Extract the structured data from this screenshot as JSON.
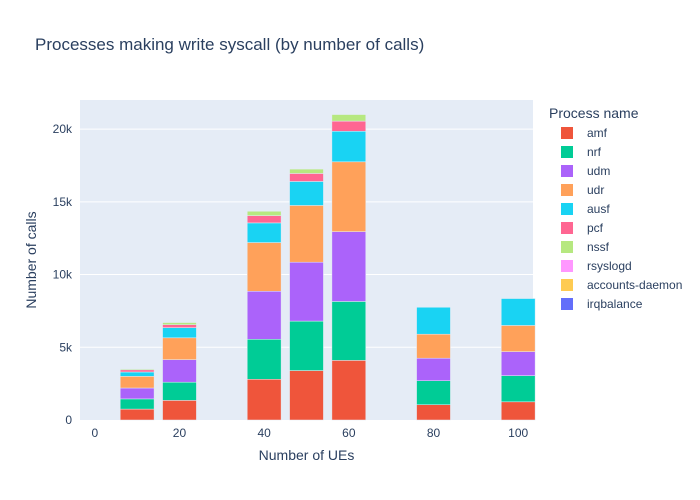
{
  "chart_data": {
    "type": "bar",
    "stacked": true,
    "title": "Processes making write syscall (by number of calls)",
    "xlabel": "Number of UEs",
    "ylabel": "Number of calls",
    "xlim": [
      -3.5,
      103.5
    ],
    "ylim": [
      0,
      22000
    ],
    "x_ticks": [
      0,
      20,
      40,
      60,
      80,
      100
    ],
    "x_tick_labels": [
      "0",
      "20",
      "40",
      "60",
      "80",
      "100"
    ],
    "y_ticks": [
      0,
      5000,
      10000,
      15000,
      20000
    ],
    "y_tick_labels": [
      "0",
      "5k",
      "10k",
      "15k",
      "20k"
    ],
    "grid": true,
    "legend_title": "Process name",
    "legend_position": "right",
    "x": [
      10,
      20,
      40,
      50,
      60,
      80,
      100
    ],
    "series": [
      {
        "name": "amf",
        "color": "#EF553B",
        "values": [
          750,
          1350,
          2800,
          3400,
          4100,
          1050,
          1250
        ]
      },
      {
        "name": "nrf",
        "color": "#00CC96",
        "values": [
          700,
          1250,
          2750,
          3400,
          4050,
          1650,
          1800
        ]
      },
      {
        "name": "udm",
        "color": "#AB63FA",
        "values": [
          750,
          1550,
          3300,
          4050,
          4800,
          1550,
          1650
        ]
      },
      {
        "name": "udr",
        "color": "#FFA15A",
        "values": [
          800,
          1500,
          3350,
          3900,
          4800,
          1650,
          1800
        ]
      },
      {
        "name": "ausf",
        "color": "#19D3F3",
        "values": [
          300,
          700,
          1350,
          1650,
          2100,
          1850,
          1850
        ]
      },
      {
        "name": "pcf",
        "color": "#FF6692",
        "values": [
          150,
          200,
          500,
          550,
          700,
          0,
          0
        ]
      },
      {
        "name": "nssf",
        "color": "#B6E880",
        "values": [
          60,
          150,
          300,
          300,
          450,
          0,
          0
        ]
      },
      {
        "name": "rsyslogd",
        "color": "#FF97FF",
        "values": [
          0,
          0,
          0,
          0,
          0,
          0,
          0
        ]
      },
      {
        "name": "accounts-daemon",
        "color": "#FECB52",
        "values": [
          0,
          0,
          0,
          0,
          0,
          0,
          0
        ]
      },
      {
        "name": "irqbalance",
        "color": "#636EFA",
        "values": [
          0,
          0,
          0,
          0,
          0,
          0,
          0
        ]
      }
    ]
  }
}
